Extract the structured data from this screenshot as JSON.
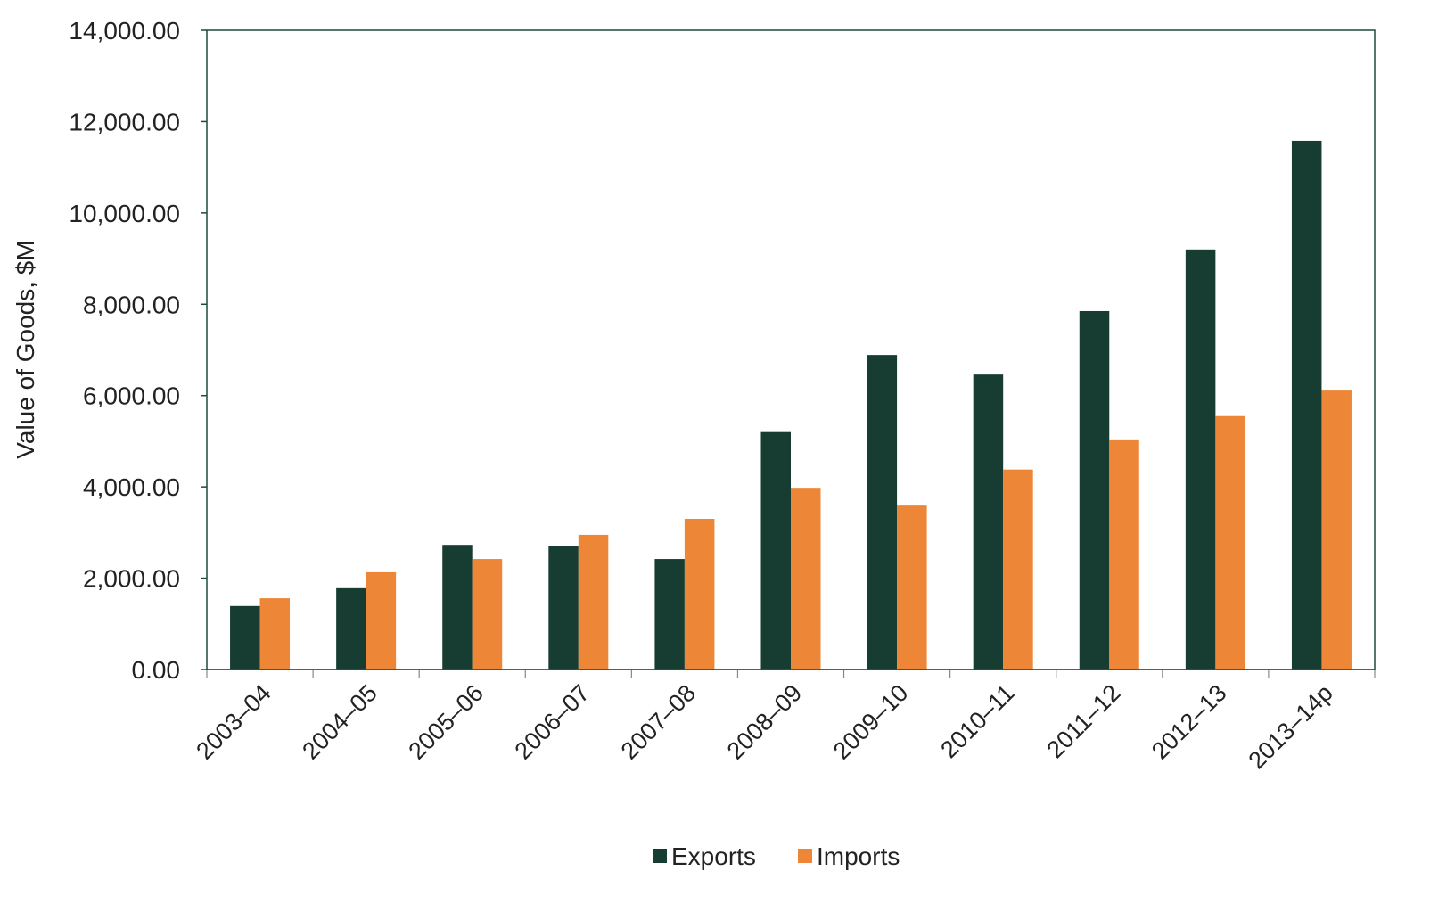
{
  "chart_data": {
    "type": "bar",
    "title": "",
    "xlabel": "",
    "ylabel": "Value of Goods, $M",
    "ylim": [
      0,
      14000
    ],
    "yticks": [
      "0.00",
      "2,000.00",
      "4,000.00",
      "6,000.00",
      "8,000.00",
      "10,000.00",
      "12,000.00",
      "14,000.00"
    ],
    "ytick_values": [
      0,
      2000,
      4000,
      6000,
      8000,
      10000,
      12000,
      14000
    ],
    "grid": false,
    "legend_position": "bottom",
    "categories": [
      "2003–04",
      "2004–05",
      "2005–06",
      "2006–07",
      "2007–08",
      "2008–09",
      "2009–10",
      "2010–11",
      "2011–12",
      "2012–13",
      "2013–14p"
    ],
    "series": [
      {
        "name": "Exports",
        "color": "#173d32",
        "values": [
          1390,
          1780,
          2730,
          2700,
          2420,
          5200,
          6890,
          6460,
          7850,
          9200,
          11580
        ]
      },
      {
        "name": "Imports",
        "color": "#ed8636",
        "values": [
          1560,
          2130,
          2420,
          2950,
          3300,
          3980,
          3590,
          4380,
          5040,
          5550,
          6110
        ]
      }
    ]
  }
}
